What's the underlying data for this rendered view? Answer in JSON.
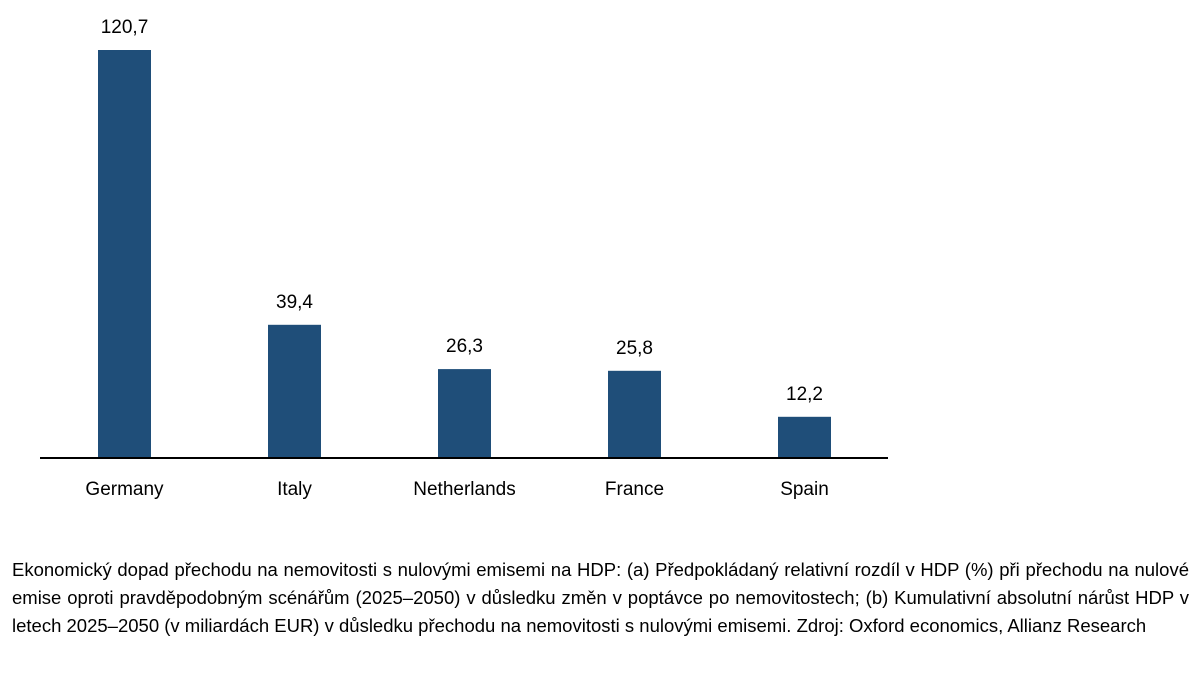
{
  "chart_data": {
    "type": "bar",
    "categories": [
      "Germany",
      "Italy",
      "Netherlands",
      "France",
      "Spain"
    ],
    "values": [
      120.7,
      39.4,
      26.3,
      25.8,
      12.2
    ],
    "value_labels": [
      "120,7",
      "39,4",
      "26,3",
      "25,8",
      "12,2"
    ],
    "title": "",
    "xlabel": "",
    "ylabel": "",
    "ylim": [
      0,
      120.7
    ],
    "grid": false,
    "legend": "none",
    "bar_color": "#1F4E79",
    "axis_color": "#000000"
  },
  "caption": {
    "text": "Ekonomický dopad přechodu na nemovitosti s nulovými emisemi na HDP: (a) Předpokládaný relativní rozdíl v HDP (%) při přechodu na nulové emise oproti pravděpodobným scénářům (2025–2050) v důsledku změn v poptávce po nemovitostech; (b) Kumulativní absolutní nárůst HDP v letech 2025–2050 (v miliardách EUR) v důsledku přechodu na nemovitosti s nulovými emisemi. Zdroj: Oxford economics, Allianz Research"
  }
}
